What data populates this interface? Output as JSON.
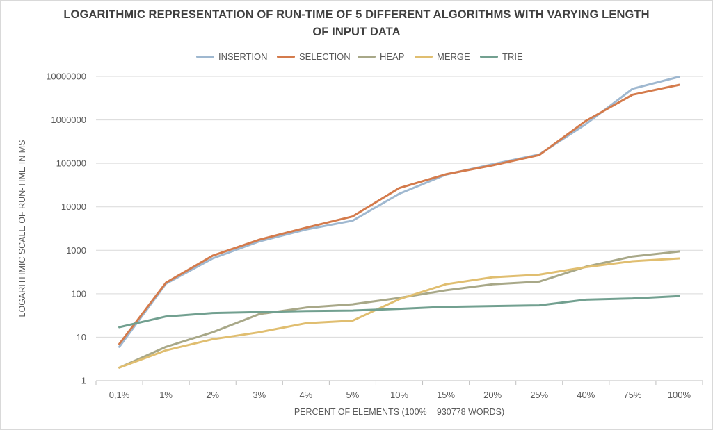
{
  "chart_data": {
    "type": "line",
    "title_line1": "LOGARITHMIC REPRESENTATION OF RUN-TIME OF 5 DIFFERENT ALGORITHMS WITH VARYING LENGTH",
    "title_line2": "OF INPUT DATA",
    "xlabel": "PERCENT OF ELEMENTS (100% = 930778 WORDS)",
    "ylabel": "LOGARITHMIC SCALE OF RUN-TIME IN MS",
    "yscale": "log",
    "ylim": [
      1,
      10000000
    ],
    "yticks": [
      "1",
      "10",
      "100",
      "1000",
      "10000",
      "100000",
      "1000000",
      "10000000"
    ],
    "grid": true,
    "legend_position": "top",
    "categories": [
      "0,1%",
      "1%",
      "2%",
      "3%",
      "4%",
      "5%",
      "10%",
      "15%",
      "20%",
      "25%",
      "40%",
      "75%",
      "100%"
    ],
    "series": [
      {
        "name": "INSERTION",
        "color": "#9fb8d0",
        "values": [
          6,
          170,
          650,
          1600,
          3000,
          4800,
          20000,
          55000,
          95000,
          160000,
          800000,
          5200000,
          9800000
        ]
      },
      {
        "name": "SELECTION",
        "color": "#d47b4c",
        "values": [
          7,
          180,
          750,
          1750,
          3300,
          6000,
          27000,
          56000,
          90000,
          155000,
          950000,
          3800000,
          6400000
        ]
      },
      {
        "name": "HEAP",
        "color": "#a8a888",
        "values": [
          2,
          6,
          13,
          34,
          48,
          57,
          80,
          120,
          165,
          190,
          420,
          720,
          940
        ]
      },
      {
        "name": "MERGE",
        "color": "#e0be70",
        "values": [
          2,
          5,
          9,
          13,
          21,
          24,
          75,
          165,
          240,
          275,
          410,
          560,
          650
        ]
      },
      {
        "name": "TRIE",
        "color": "#72a090",
        "values": [
          17,
          30,
          36,
          38,
          40,
          41,
          45,
          50,
          52,
          54,
          73,
          78,
          88
        ]
      }
    ]
  }
}
